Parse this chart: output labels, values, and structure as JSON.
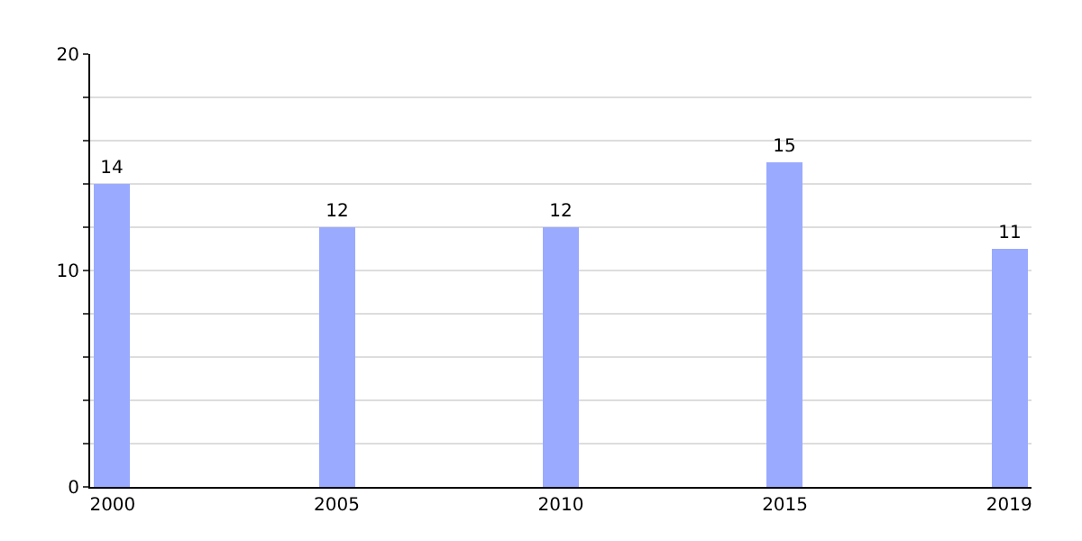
{
  "chart_data": {
    "type": "bar",
    "categories": [
      "2000",
      "2005",
      "2010",
      "2015",
      "2019"
    ],
    "values": [
      14,
      12,
      12,
      15,
      11
    ],
    "color": "#99aaff",
    "data_labels": true,
    "ylim": [
      0,
      20
    ],
    "yticks": [
      0,
      {
        "value": 2,
        "label": null
      },
      {
        "value": 4,
        "label": null
      },
      {
        "value": 6,
        "label": null
      },
      {
        "value": 8,
        "label": null
      },
      10,
      {
        "value": 12,
        "label": null
      },
      {
        "value": 14,
        "label": null
      },
      {
        "value": 16,
        "label": null
      },
      {
        "value": 18,
        "label": null
      },
      20
    ],
    "grid": "y"
  }
}
